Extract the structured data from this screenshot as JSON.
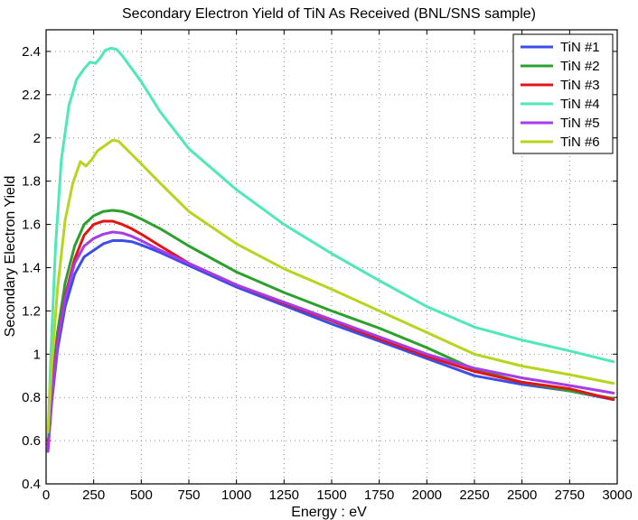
{
  "chart_data": {
    "type": "line",
    "title": "Secondary Electron Yield of TiN As Received (BNL/SNS sample)",
    "xlabel": "Energy : eV",
    "ylabel": "Secondary Electron Yield",
    "xlim": [
      0,
      3000
    ],
    "ylim": [
      0.4,
      2.5
    ],
    "xticks": [
      0,
      250,
      500,
      750,
      1000,
      1250,
      1500,
      1750,
      2000,
      2250,
      2500,
      2750,
      3000
    ],
    "xtick_labels": [
      "0",
      "250",
      "500",
      "750",
      "1000",
      "1250",
      "1500",
      "1750",
      "2000",
      "2250",
      "2500",
      "2750",
      "3000"
    ],
    "yticks": [
      0.4,
      0.6,
      0.8,
      1.0,
      1.2,
      1.4,
      1.6,
      1.8,
      2.0,
      2.2,
      2.4
    ],
    "ytick_labels": [
      "0.4",
      "0.6",
      "0.8",
      "1",
      "1.2",
      "1.4",
      "1.6",
      "1.8",
      "2",
      "2.2",
      "2.4"
    ],
    "grid": true,
    "legend_position": "top-right",
    "series": [
      {
        "name": "TiN #1",
        "color": "#3b4ee8",
        "points": [
          [
            10,
            0.56
          ],
          [
            30,
            0.78
          ],
          [
            60,
            1.02
          ],
          [
            100,
            1.22
          ],
          [
            150,
            1.37
          ],
          [
            200,
            1.45
          ],
          [
            250,
            1.48
          ],
          [
            300,
            1.51
          ],
          [
            350,
            1.525
          ],
          [
            400,
            1.525
          ],
          [
            450,
            1.52
          ],
          [
            500,
            1.505
          ],
          [
            600,
            1.47
          ],
          [
            750,
            1.41
          ],
          [
            1000,
            1.31
          ],
          [
            1250,
            1.225
          ],
          [
            1500,
            1.14
          ],
          [
            1750,
            1.06
          ],
          [
            2000,
            0.98
          ],
          [
            2250,
            0.9
          ],
          [
            2500,
            0.86
          ],
          [
            2750,
            0.83
          ],
          [
            2980,
            0.79
          ]
        ]
      },
      {
        "name": "TiN #2",
        "color": "#2ca02c",
        "points": [
          [
            10,
            0.6
          ],
          [
            30,
            0.85
          ],
          [
            60,
            1.1
          ],
          [
            100,
            1.33
          ],
          [
            150,
            1.5
          ],
          [
            200,
            1.6
          ],
          [
            250,
            1.64
          ],
          [
            300,
            1.66
          ],
          [
            350,
            1.665
          ],
          [
            400,
            1.66
          ],
          [
            450,
            1.645
          ],
          [
            500,
            1.625
          ],
          [
            600,
            1.58
          ],
          [
            750,
            1.5
          ],
          [
            1000,
            1.38
          ],
          [
            1250,
            1.285
          ],
          [
            1500,
            1.2
          ],
          [
            1750,
            1.12
          ],
          [
            2000,
            1.03
          ],
          [
            2250,
            0.93
          ],
          [
            2500,
            0.87
          ],
          [
            2750,
            0.83
          ],
          [
            2980,
            0.795
          ]
        ]
      },
      {
        "name": "TiN #3",
        "color": "#e41414",
        "points": [
          [
            10,
            0.58
          ],
          [
            30,
            0.82
          ],
          [
            60,
            1.06
          ],
          [
            100,
            1.27
          ],
          [
            150,
            1.44
          ],
          [
            200,
            1.55
          ],
          [
            250,
            1.6
          ],
          [
            300,
            1.615
          ],
          [
            350,
            1.615
          ],
          [
            400,
            1.6
          ],
          [
            450,
            1.58
          ],
          [
            500,
            1.555
          ],
          [
            600,
            1.5
          ],
          [
            750,
            1.42
          ],
          [
            1000,
            1.32
          ],
          [
            1250,
            1.235
          ],
          [
            1500,
            1.155
          ],
          [
            1750,
            1.07
          ],
          [
            2000,
            0.99
          ],
          [
            2250,
            0.92
          ],
          [
            2500,
            0.87
          ],
          [
            2750,
            0.84
          ],
          [
            2980,
            0.79
          ]
        ]
      },
      {
        "name": "TiN #4",
        "color": "#4fe8b8",
        "points": [
          [
            10,
            0.62
          ],
          [
            25,
            1.0
          ],
          [
            50,
            1.5
          ],
          [
            80,
            1.9
          ],
          [
            120,
            2.15
          ],
          [
            160,
            2.27
          ],
          [
            200,
            2.32
          ],
          [
            230,
            2.35
          ],
          [
            260,
            2.345
          ],
          [
            285,
            2.37
          ],
          [
            310,
            2.405
          ],
          [
            340,
            2.415
          ],
          [
            370,
            2.41
          ],
          [
            400,
            2.38
          ],
          [
            450,
            2.32
          ],
          [
            500,
            2.26
          ],
          [
            600,
            2.12
          ],
          [
            750,
            1.95
          ],
          [
            1000,
            1.76
          ],
          [
            1250,
            1.6
          ],
          [
            1500,
            1.465
          ],
          [
            1750,
            1.34
          ],
          [
            2000,
            1.22
          ],
          [
            2250,
            1.125
          ],
          [
            2500,
            1.065
          ],
          [
            2750,
            1.015
          ],
          [
            2980,
            0.965
          ]
        ]
      },
      {
        "name": "TiN #5",
        "color": "#a63ce8",
        "points": [
          [
            10,
            0.55
          ],
          [
            30,
            0.8
          ],
          [
            60,
            1.05
          ],
          [
            100,
            1.26
          ],
          [
            150,
            1.42
          ],
          [
            200,
            1.5
          ],
          [
            250,
            1.535
          ],
          [
            300,
            1.555
          ],
          [
            350,
            1.565
          ],
          [
            400,
            1.56
          ],
          [
            450,
            1.545
          ],
          [
            500,
            1.525
          ],
          [
            600,
            1.48
          ],
          [
            750,
            1.42
          ],
          [
            1000,
            1.32
          ],
          [
            1250,
            1.24
          ],
          [
            1500,
            1.16
          ],
          [
            1750,
            1.08
          ],
          [
            2000,
            1.0
          ],
          [
            2250,
            0.935
          ],
          [
            2500,
            0.89
          ],
          [
            2750,
            0.855
          ],
          [
            2980,
            0.82
          ]
        ]
      },
      {
        "name": "TiN #6",
        "color": "#b8d41e",
        "points": [
          [
            10,
            0.64
          ],
          [
            30,
            0.95
          ],
          [
            60,
            1.3
          ],
          [
            100,
            1.62
          ],
          [
            140,
            1.79
          ],
          [
            180,
            1.89
          ],
          [
            210,
            1.87
          ],
          [
            240,
            1.9
          ],
          [
            270,
            1.94
          ],
          [
            310,
            1.965
          ],
          [
            350,
            1.99
          ],
          [
            380,
            1.985
          ],
          [
            420,
            1.95
          ],
          [
            500,
            1.88
          ],
          [
            600,
            1.79
          ],
          [
            750,
            1.66
          ],
          [
            1000,
            1.51
          ],
          [
            1250,
            1.395
          ],
          [
            1500,
            1.3
          ],
          [
            1750,
            1.2
          ],
          [
            2000,
            1.1
          ],
          [
            2250,
            1.0
          ],
          [
            2500,
            0.945
          ],
          [
            2750,
            0.905
          ],
          [
            2980,
            0.865
          ]
        ]
      }
    ]
  }
}
